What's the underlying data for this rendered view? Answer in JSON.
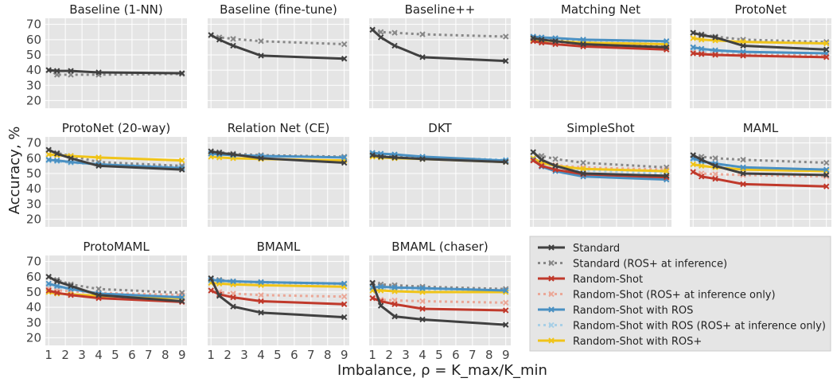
{
  "chart_data": {
    "type": "line",
    "xlabel": "Imbalance, ρ = K_max/K_min",
    "ylabel": "Accuracy, %",
    "x": [
      1,
      1.5,
      2.33,
      4,
      9
    ],
    "xticks": [
      1,
      2,
      3,
      4,
      5,
      6,
      7,
      8,
      9
    ],
    "yticks": [
      20,
      30,
      40,
      50,
      60,
      70
    ],
    "ylim": [
      15,
      74
    ],
    "xlim": [
      0.8,
      9.3
    ],
    "grid": true,
    "legend_position": "bottom-right",
    "legend": [
      {
        "key": "std",
        "label": "Standard",
        "color": "#404040",
        "dashed": false
      },
      {
        "key": "stdros",
        "label": "Standard (ROS+ at inference)",
        "color": "#888888",
        "dashed": true
      },
      {
        "key": "rs",
        "label": "Random-Shot",
        "color": "#c0392b",
        "dashed": false
      },
      {
        "key": "rsros",
        "label": "Random-Shot (ROS+ at inference only)",
        "color": "#eba898",
        "dashed": true
      },
      {
        "key": "ros",
        "label": "Random-Shot with ROS",
        "color": "#4a90c2",
        "dashed": false
      },
      {
        "key": "rosros",
        "label": "Random-Shot with ROS (ROS+ at inference only)",
        "color": "#a8cfe6",
        "dashed": true
      },
      {
        "key": "rosp",
        "label": "Random-Shot with ROS+",
        "color": "#f0c419",
        "dashed": false
      }
    ],
    "panels": [
      {
        "title": "Baseline (1-NN)",
        "series": {
          "std": [
            40,
            39.5,
            39.5,
            38.5,
            38
          ],
          "stdros": [
            40,
            37,
            37,
            37,
            37.5
          ]
        }
      },
      {
        "title": "Baseline (fine-tune)",
        "series": {
          "std": [
            63,
            60,
            56,
            49.5,
            47.5
          ],
          "stdros": [
            63,
            61.5,
            60.5,
            59,
            57
          ]
        }
      },
      {
        "title": "Baseline++",
        "series": {
          "std": [
            66.5,
            61.5,
            56,
            48.5,
            46
          ],
          "stdros": [
            66.5,
            65,
            64.5,
            63.5,
            62
          ]
        }
      },
      {
        "title": "Matching Net",
        "series": {
          "std": [
            61,
            60,
            59,
            57,
            55
          ],
          "stdros": [
            61,
            60.5,
            59.5,
            58,
            56.5
          ],
          "rs": [
            59,
            58,
            57,
            55.5,
            53.5
          ],
          "rsros": [
            59,
            58.5,
            58,
            56.5,
            55
          ],
          "ros": [
            62,
            61.5,
            61,
            60,
            59
          ],
          "rosros": [
            61.5,
            61,
            60.5,
            59.5,
            58.5
          ],
          "rosp": [
            60,
            59.5,
            59,
            58,
            57
          ]
        }
      },
      {
        "title": "ProtoNet",
        "series": {
          "std": [
            64.5,
            63,
            61.5,
            56,
            53.5
          ],
          "stdros": [
            64.5,
            63.5,
            62,
            60,
            58.5
          ],
          "rs": [
            51,
            50.5,
            50,
            49.5,
            48.5
          ],
          "rsros": [
            51.5,
            51,
            50.5,
            50,
            49.5
          ],
          "ros": [
            55,
            54,
            53,
            52,
            51
          ],
          "rosros": [
            53,
            52.5,
            52,
            51,
            50.5
          ],
          "rosp": [
            61,
            60,
            59.5,
            58.5,
            57.5
          ]
        }
      },
      {
        "title": "ProtoNet (20-way)",
        "series": {
          "std": [
            65.5,
            63,
            60,
            55,
            52.5
          ],
          "stdros": [
            65.5,
            63.5,
            61.5,
            57.5,
            55
          ],
          "ros": [
            59,
            58.5,
            57.5,
            56,
            53.5
          ],
          "rosros": [
            58.5,
            58,
            57,
            56,
            54.5
          ],
          "rosp": [
            62.5,
            62,
            61.5,
            60.5,
            58.5
          ]
        }
      },
      {
        "title": "Relation Net (CE)",
        "series": {
          "std": [
            64.5,
            63.5,
            62.5,
            60,
            57
          ],
          "stdros": [
            64.5,
            64,
            63,
            62,
            61
          ],
          "ros": [
            63,
            62.5,
            62,
            61.5,
            60.5
          ],
          "rosros": [
            63,
            62.5,
            62,
            61.5,
            61
          ],
          "rosp": [
            61,
            60.5,
            60,
            59.5,
            58.5
          ]
        }
      },
      {
        "title": "DKT",
        "series": {
          "std": [
            62,
            61,
            60.5,
            59.5,
            57.5
          ],
          "stdros": [
            62,
            61.5,
            61,
            60,
            58
          ],
          "ros": [
            63.5,
            63,
            62.5,
            61,
            58.5
          ],
          "rosros": [
            63,
            62.5,
            62,
            60.5,
            59
          ],
          "rosp": [
            61,
            60.5,
            60,
            59.5,
            57.5
          ]
        }
      },
      {
        "title": "SimpleShot",
        "series": {
          "std": [
            64,
            59,
            55,
            50,
            48.5
          ],
          "stdros": [
            64,
            61.5,
            59.5,
            57,
            54
          ],
          "rs": [
            58.5,
            55,
            52.5,
            49.5,
            47.5
          ],
          "rsros": [
            59,
            57,
            55.5,
            54,
            52.5
          ],
          "ros": [
            59,
            54.5,
            51.5,
            48,
            46
          ],
          "rosros": [
            59,
            56.5,
            54.5,
            52,
            50
          ],
          "rosp": [
            60,
            57,
            55,
            53,
            51.5
          ]
        }
      },
      {
        "title": "MAML",
        "series": {
          "std": [
            62,
            59,
            55,
            50,
            49
          ],
          "stdros": [
            62,
            61,
            60,
            59,
            57
          ],
          "rs": [
            51,
            48,
            46.5,
            43,
            41.5
          ],
          "rsros": [
            51,
            50,
            49.5,
            49,
            48
          ],
          "ros": [
            60,
            58,
            56.5,
            54,
            52.5
          ],
          "rosros": [
            59,
            57.5,
            56,
            54,
            52
          ],
          "rosp": [
            56,
            55,
            54,
            52.5,
            51.5
          ]
        }
      },
      {
        "title": "ProtoMAML",
        "series": {
          "std": [
            60,
            57,
            54,
            48,
            44
          ],
          "stdros": [
            60,
            58,
            55,
            52,
            49.5
          ],
          "rs": [
            51,
            49.5,
            48,
            46,
            43.5
          ],
          "rsros": [
            52,
            51,
            50.5,
            49.5,
            48
          ],
          "ros": [
            55.5,
            54,
            52,
            49,
            46.5
          ],
          "rosros": [
            54,
            53,
            51.5,
            49,
            47
          ],
          "rosp": [
            50,
            49,
            48.5,
            47.5,
            46
          ]
        }
      },
      {
        "title": "BMAML",
        "series": {
          "std": [
            59,
            47.5,
            40.5,
            36.5,
            33.5
          ],
          "stdros": [
            59,
            58,
            57,
            56.5,
            55.5
          ],
          "rs": [
            51,
            48.5,
            46.5,
            44,
            42
          ],
          "rsros": [
            51,
            50,
            49,
            48,
            47
          ],
          "ros": [
            58,
            57.5,
            57,
            56.5,
            55.5
          ],
          "rosros": [
            57.5,
            57,
            56.5,
            56,
            55
          ],
          "rosp": [
            56,
            55.5,
            55,
            54.5,
            53.5
          ]
        }
      },
      {
        "title": "BMAML (chaser)",
        "series": {
          "std": [
            56,
            41,
            34,
            32,
            28.5
          ],
          "stdros": [
            56,
            55,
            54.5,
            53.5,
            52
          ],
          "rs": [
            46,
            44,
            42,
            39,
            38
          ],
          "rsros": [
            46,
            45,
            44.5,
            44,
            43
          ],
          "ros": [
            53,
            53.5,
            53,
            52.5,
            51
          ],
          "rosros": [
            52,
            52,
            51.5,
            51,
            50
          ],
          "rosp": [
            51,
            51,
            50.5,
            50,
            50
          ]
        }
      }
    ]
  }
}
